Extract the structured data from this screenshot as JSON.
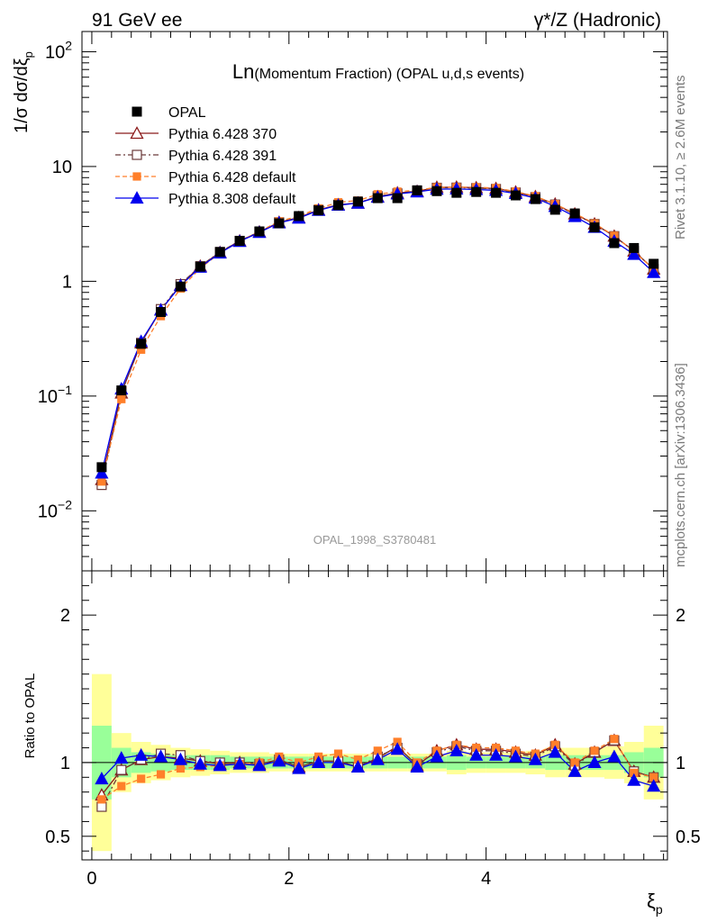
{
  "header": {
    "left": "91 GeV ee",
    "right": "γ*/Z (Hadronic)"
  },
  "side_labels": {
    "rivet": "Rivet 3.1.10, ≥ 2.6M events",
    "mcplots": "mcplots.cern.ch [arXiv:1306.3436]"
  },
  "watermark": "OPAL_1998_S3780481",
  "chart_data": {
    "type": "line",
    "title_main": "Ln",
    "title_rest": "(Momentum Fraction) (OPAL u,d,s events)",
    "ylabel": "1/σ dσ/dξ",
    "ylabel_sub": "p",
    "xlabel": "ξ",
    "xlabel_sub": "p",
    "ratio_ylabel": "Ratio to OPAL",
    "xlim": [
      -0.1,
      5.84
    ],
    "ylim": [
      0.003,
      150
    ],
    "yscale": "log",
    "ratio_ylim": [
      0.34,
      2.3
    ],
    "x_ticks": [
      {
        "value": 0,
        "label": "0"
      },
      {
        "value": 2,
        "label": "2"
      },
      {
        "value": 4,
        "label": "4"
      }
    ],
    "y_ticks": [
      {
        "value": 0.01,
        "base": "10",
        "exp": "−2"
      },
      {
        "value": 0.1,
        "base": "10",
        "exp": "−1"
      },
      {
        "value": 1,
        "base": "1",
        "exp": ""
      },
      {
        "value": 10,
        "base": "10",
        "exp": ""
      },
      {
        "value": 100,
        "base": "10",
        "exp": "2"
      }
    ],
    "ratio_ticks": [
      {
        "value": 0.5,
        "label": "0.5"
      },
      {
        "value": 1,
        "label": "1"
      },
      {
        "value": 2,
        "label": "2"
      }
    ],
    "x": [
      0.1,
      0.3,
      0.5,
      0.7,
      0.9,
      1.1,
      1.3,
      1.5,
      1.7,
      1.9,
      2.1,
      2.3,
      2.5,
      2.7,
      2.9,
      3.1,
      3.3,
      3.5,
      3.7,
      3.9,
      4.1,
      4.3,
      4.5,
      4.7,
      4.9,
      5.1,
      5.3,
      5.5,
      5.7
    ],
    "reference": {
      "name": "OPAL",
      "values": [
        0.024,
        0.112,
        0.285,
        0.54,
        0.9,
        1.34,
        1.8,
        2.25,
        2.72,
        3.2,
        3.7,
        4.15,
        4.6,
        4.95,
        5.3,
        5.3,
        6.2,
        6.1,
        5.9,
        6.0,
        5.9,
        5.6,
        5.2,
        4.2,
        3.9,
        2.95,
        2.15,
        1.95,
        1.42
      ],
      "band_green": [
        0.25,
        0.1,
        0.07,
        0.06,
        0.05,
        0.05,
        0.05,
        0.04,
        0.04,
        0.04,
        0.04,
        0.04,
        0.04,
        0.04,
        0.04,
        0.04,
        0.04,
        0.04,
        0.05,
        0.04,
        0.04,
        0.04,
        0.04,
        0.05,
        0.05,
        0.05,
        0.05,
        0.07,
        0.1
      ],
      "band_yellow": [
        0.6,
        0.2,
        0.14,
        0.12,
        0.1,
        0.09,
        0.08,
        0.07,
        0.07,
        0.06,
        0.06,
        0.06,
        0.06,
        0.06,
        0.06,
        0.06,
        0.06,
        0.06,
        0.08,
        0.07,
        0.07,
        0.07,
        0.08,
        0.1,
        0.1,
        0.1,
        0.11,
        0.14,
        0.25
      ]
    },
    "series": [
      {
        "name": "Pythia 6.428 370",
        "color": "#8b1a1a",
        "marker": "triangle-open",
        "dash": "",
        "ratio": [
          0.78,
          0.95,
          1.02,
          1.04,
          1.03,
          1.01,
          0.99,
          1.0,
          0.99,
          1.02,
          0.97,
          1.01,
          1.01,
          0.97,
          1.03,
          1.11,
          0.98,
          1.08,
          1.12,
          1.09,
          1.09,
          1.07,
          1.05,
          1.12,
          0.99,
          1.07,
          1.15,
          0.94,
          0.9
        ]
      },
      {
        "name": "Pythia 6.428 391",
        "color": "#6b3a3a",
        "marker": "square-open",
        "dash": "6,3,2,3",
        "ratio": [
          0.7,
          0.95,
          1.02,
          1.06,
          1.05,
          1.01,
          1.0,
          1.0,
          0.99,
          1.02,
          0.97,
          1.01,
          1.01,
          0.97,
          1.04,
          1.1,
          0.99,
          1.07,
          1.11,
          1.08,
          1.08,
          1.06,
          1.04,
          1.11,
          0.98,
          1.07,
          1.15,
          0.94,
          0.9
        ]
      },
      {
        "name": "Pythia 6.428 default",
        "color": "#ff7f2a",
        "marker": "square-filled",
        "dash": "5,3",
        "ratio": [
          0.75,
          0.84,
          0.89,
          0.92,
          0.96,
          0.97,
          0.98,
          0.99,
          1.0,
          1.04,
          1.0,
          1.04,
          1.06,
          1.02,
          1.08,
          1.14,
          1.0,
          1.08,
          1.12,
          1.1,
          1.1,
          1.08,
          1.06,
          1.12,
          1.0,
          1.08,
          1.16,
          0.93,
          0.9
        ]
      },
      {
        "name": "Pythia 8.308 default",
        "color": "#0000ee",
        "marker": "triangle-filled",
        "dash": "",
        "ratio": [
          0.89,
          1.03,
          1.05,
          1.04,
          1.02,
          0.99,
          0.98,
          0.99,
          0.98,
          1.01,
          0.96,
          1.0,
          1.0,
          0.97,
          1.02,
          1.09,
          0.97,
          1.04,
          1.08,
          1.05,
          1.05,
          1.04,
          1.02,
          1.07,
          0.94,
          1.0,
          1.04,
          0.88,
          0.84
        ]
      }
    ],
    "legend_placement": "top-left"
  }
}
